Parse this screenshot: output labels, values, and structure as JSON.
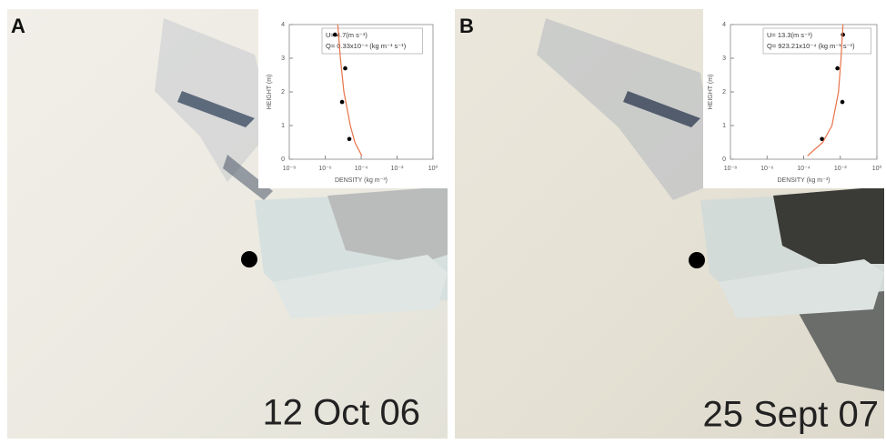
{
  "panels": [
    {
      "label": "A",
      "caption": "12 Oct 06"
    },
    {
      "label": "B",
      "caption": "25 Sept 07"
    }
  ],
  "chart_data": [
    {
      "type": "scatter",
      "xlabel": "DENSITY (kg m⁻³)",
      "ylabel": "HEIGHT (m)",
      "annotations": [
        "U= 4.7(m s⁻¹)",
        "Q= 0.33x10⁻⁴ (kg m⁻¹ s⁻¹)"
      ],
      "xscale": "log",
      "xlim": [
        1e-08,
        1
      ],
      "ylim": [
        0,
        4
      ],
      "xticks": [
        {
          "value": 1e-08,
          "label": "10⁻⁸"
        },
        {
          "value": 1e-06,
          "label": "10⁻⁶"
        },
        {
          "value": 0.0001,
          "label": "10⁻⁴"
        },
        {
          "value": 0.01,
          "label": "10⁻²"
        },
        {
          "value": 1,
          "label": "10⁰"
        }
      ],
      "yticks": [
        0,
        1,
        2,
        3,
        4
      ],
      "series": [
        {
          "type": "scatter",
          "color": "#000000",
          "x": [
            3.5e-06,
            1.3e-05,
            8.7e-06,
            2.2e-05
          ],
          "values": [
            3.7,
            2.7,
            1.7,
            0.6
          ]
        },
        {
          "type": "line",
          "color": "#e8734a",
          "x": [
            0.00011,
            4.5e-05,
            2.5e-05,
            1.1e-05,
            7e-06,
            5e-06
          ],
          "values": [
            0.1,
            0.5,
            1,
            2,
            3,
            4
          ]
        }
      ]
    },
    {
      "type": "scatter",
      "xlabel": "DENSITY (kg m⁻³)",
      "ylabel": "HEIGHT (m)",
      "annotations": [
        "U= 13.3(m s⁻¹)",
        "Q= 923.21x10⁻⁴ (kg m⁻¹ s⁻¹)"
      ],
      "xscale": "log",
      "xlim": [
        1e-08,
        1
      ],
      "ylim": [
        0,
        4
      ],
      "xticks": [
        {
          "value": 1e-08,
          "label": "10⁻⁸"
        },
        {
          "value": 1e-06,
          "label": "10⁻⁶"
        },
        {
          "value": 0.0001,
          "label": "10⁻⁴"
        },
        {
          "value": 0.01,
          "label": "10⁻²"
        },
        {
          "value": 1,
          "label": "10⁰"
        }
      ],
      "yticks": [
        0,
        1,
        2,
        3,
        4
      ],
      "series": [
        {
          "type": "scatter",
          "color": "#000000",
          "x": [
            0.014,
            0.007,
            0.013,
            0.001
          ],
          "values": [
            3.7,
            2.7,
            1.7,
            0.6
          ]
        },
        {
          "type": "line",
          "color": "#e8734a",
          "x": [
            0.00016,
            0.0011,
            0.0035,
            0.008,
            0.011,
            0.014
          ],
          "values": [
            0.1,
            0.5,
            1,
            2,
            3,
            4
          ]
        }
      ]
    }
  ]
}
